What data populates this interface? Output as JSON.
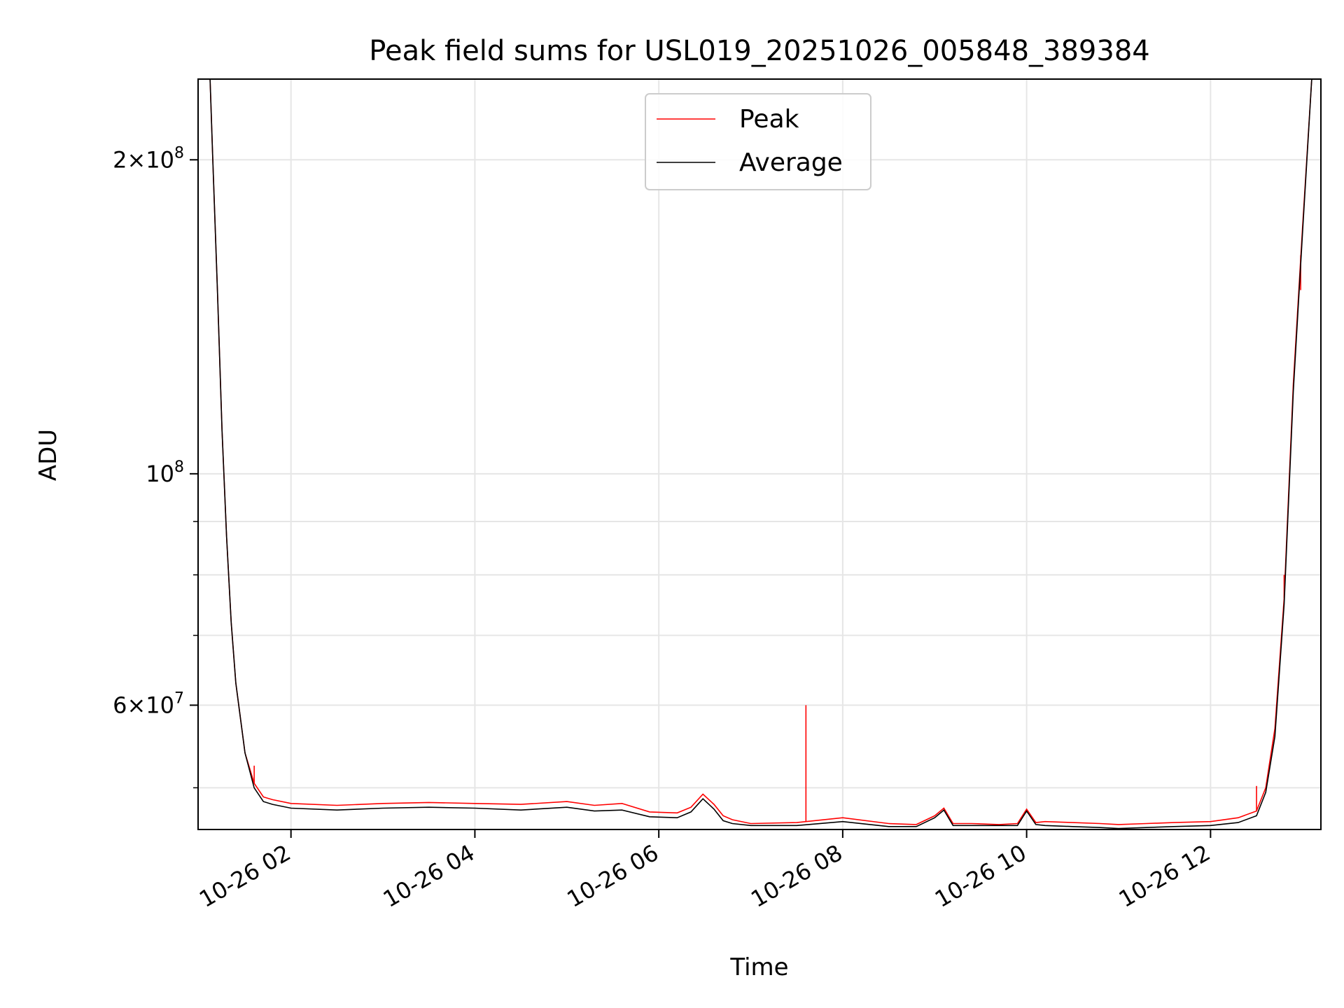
{
  "chart_data": {
    "type": "line",
    "title": "Peak field sums for USL019_20251026_005848_389384",
    "xlabel": "Time",
    "ylabel": "ADU",
    "x_unit": "hours since 2025-10-26 00:00",
    "xlim": [
      0.99,
      13.2
    ],
    "ylim": [
      45600000,
      239000000
    ],
    "y_scale": "log",
    "grid": true,
    "legend_position": "upper-center",
    "x_ticks": [
      {
        "value": 2,
        "label": "10-26 02"
      },
      {
        "value": 4,
        "label": "10-26 04"
      },
      {
        "value": 6,
        "label": "10-26 06"
      },
      {
        "value": 8,
        "label": "10-26 08"
      },
      {
        "value": 10,
        "label": "10-26 10"
      },
      {
        "value": 12,
        "label": "10-26 12"
      }
    ],
    "y_major_ticks": [
      {
        "value": 60000000,
        "mantissa": "6",
        "exponent": "7"
      },
      {
        "value": 100000000,
        "mantissa": "",
        "exponent": "8"
      },
      {
        "value": 200000000,
        "mantissa": "2",
        "exponent": "8"
      }
    ],
    "y_minor_gridlines": [
      50000000,
      70000000,
      80000000,
      90000000
    ],
    "series": [
      {
        "name": "Average",
        "color": "#000000",
        "x": [
          1.12,
          1.15,
          1.2,
          1.25,
          1.3,
          1.35,
          1.4,
          1.5,
          1.6,
          1.7,
          1.8,
          2.0,
          2.5,
          3.0,
          3.5,
          4.0,
          4.5,
          5.0,
          5.3,
          5.6,
          5.9,
          6.2,
          6.35,
          6.48,
          6.6,
          6.7,
          6.8,
          7.0,
          7.5,
          8.0,
          8.5,
          8.8,
          9.0,
          9.1,
          9.2,
          9.4,
          9.7,
          9.9,
          10.0,
          10.1,
          10.2,
          10.5,
          10.8,
          11.0,
          11.3,
          11.6,
          12.0,
          12.3,
          12.5,
          12.6,
          12.7,
          12.8,
          12.9,
          13.0,
          13.1
        ],
        "values": [
          239000000,
          200000000,
          150000000,
          110000000,
          87000000,
          72000000,
          63000000,
          54000000,
          50000000,
          48500000,
          48200000,
          47800000,
          47600000,
          47800000,
          47900000,
          47800000,
          47600000,
          47900000,
          47500000,
          47600000,
          46900000,
          46800000,
          47400000,
          48800000,
          47700000,
          46500000,
          46200000,
          46000000,
          46000000,
          46400000,
          45900000,
          45900000,
          46800000,
          47600000,
          46000000,
          46000000,
          46000000,
          46000000,
          47500000,
          46100000,
          46000000,
          45900000,
          45800000,
          45700000,
          45800000,
          45900000,
          46000000,
          46300000,
          47000000,
          49500000,
          56000000,
          75000000,
          120000000,
          170000000,
          239000000
        ]
      },
      {
        "name": "Peak",
        "color": "#ff0000",
        "x": [
          1.12,
          1.15,
          1.2,
          1.25,
          1.3,
          1.35,
          1.4,
          1.5,
          1.6,
          1.7,
          1.8,
          2.0,
          2.5,
          3.0,
          3.5,
          4.0,
          4.5,
          5.0,
          5.3,
          5.6,
          5.9,
          6.2,
          6.35,
          6.48,
          6.6,
          6.7,
          6.8,
          7.0,
          7.5,
          8.0,
          8.5,
          8.8,
          9.0,
          9.1,
          9.2,
          9.4,
          9.7,
          9.9,
          10.0,
          10.1,
          10.2,
          10.5,
          10.8,
          11.0,
          11.3,
          11.6,
          12.0,
          12.3,
          12.5,
          12.6,
          12.7,
          12.8,
          12.9,
          13.0,
          13.1
        ],
        "values": [
          239000000,
          200000000,
          150000000,
          110000000,
          87000000,
          72000000,
          63000000,
          54000000,
          50500000,
          49000000,
          48700000,
          48300000,
          48100000,
          48300000,
          48400000,
          48300000,
          48200000,
          48500000,
          48100000,
          48300000,
          47400000,
          47300000,
          47900000,
          49300000,
          48200000,
          47000000,
          46600000,
          46200000,
          46300000,
          46800000,
          46200000,
          46100000,
          47000000,
          47800000,
          46200000,
          46200000,
          46100000,
          46200000,
          47700000,
          46300000,
          46400000,
          46300000,
          46200000,
          46100000,
          46200000,
          46300000,
          46400000,
          46800000,
          47500000,
          50000000,
          57000000,
          76000000,
          122000000,
          172000000,
          239000000
        ],
        "spikes": [
          {
            "x": 7.6,
            "value": 60000000
          },
          {
            "x": 1.6,
            "value": 52500000
          },
          {
            "x": 12.5,
            "value": 50200000
          },
          {
            "x": 12.8,
            "value": 80000000
          },
          {
            "x": 12.98,
            "value": 150000000
          }
        ]
      }
    ]
  }
}
